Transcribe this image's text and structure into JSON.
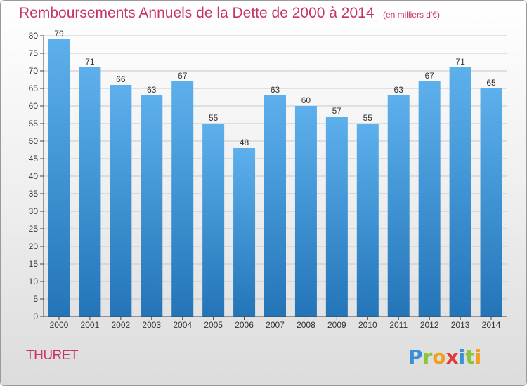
{
  "header": {
    "title": "Remboursements Annuels de la Dette de 2000 à 2014",
    "unit": "(en milliers d'€)"
  },
  "footer": {
    "commune": "THURET",
    "logo_text": "Proxiti"
  },
  "colors": {
    "title": "#c8336b",
    "bar_top": "#5db0ec",
    "bar_bottom": "#2375b8",
    "grid": "#c8c8c8"
  },
  "chart_data": {
    "type": "bar",
    "categories": [
      "2000",
      "2001",
      "2002",
      "2003",
      "2004",
      "2005",
      "2006",
      "2007",
      "2008",
      "2009",
      "2010",
      "2011",
      "2012",
      "2013",
      "2014"
    ],
    "values": [
      79,
      71,
      66,
      63,
      67,
      55,
      48,
      63,
      60,
      57,
      55,
      63,
      67,
      71,
      65
    ],
    "title": "Remboursements Annuels de la Dette de 2000 à 2014",
    "ylim": [
      0,
      80
    ],
    "yticks": [
      0,
      5,
      10,
      15,
      20,
      25,
      30,
      35,
      40,
      45,
      50,
      55,
      60,
      65,
      70,
      75,
      80
    ],
    "grid": true,
    "data_labels": true
  }
}
